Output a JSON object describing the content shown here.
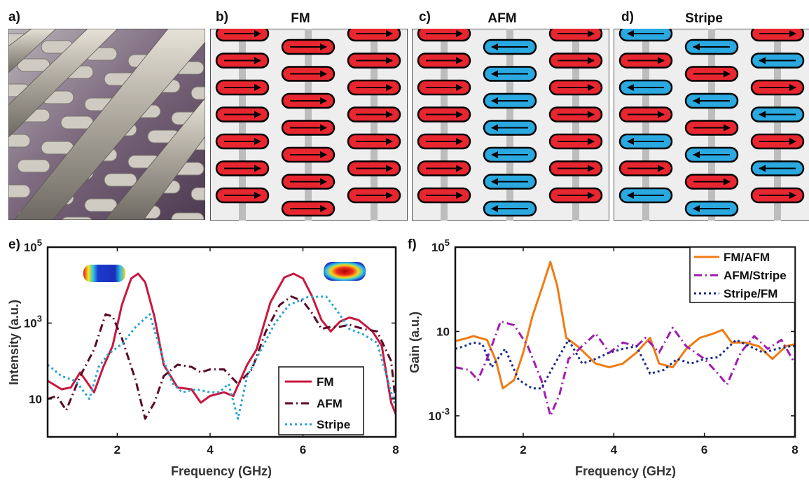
{
  "panel_labels": {
    "a": "a)",
    "b": "b)",
    "c": "c)",
    "d": "d)",
    "e": "e)",
    "f": "f)"
  },
  "panel_titles": {
    "b": "FM",
    "c": "AFM",
    "d": "Stripe"
  },
  "colors": {
    "up": "#e8262f",
    "down": "#2aa8e0",
    "fm": "#c8183f",
    "afm": "#5a0a2a",
    "stripe": "#2aa5d0",
    "fm_afm": "#f07b12",
    "afm_stripe": "#a01cb0",
    "stripe_fm": "#1e2a8a"
  },
  "schematics": [
    {
      "title": "FM",
      "columns": [
        [
          "R",
          "R",
          "R",
          "R",
          "R",
          "R",
          "R"
        ],
        [
          "R",
          "R",
          "R",
          "R",
          "R",
          "R",
          "R"
        ],
        [
          "R",
          "R",
          "R",
          "R",
          "R",
          "R",
          "R"
        ]
      ]
    },
    {
      "title": "AFM",
      "columns": [
        [
          "R",
          "R",
          "R",
          "R",
          "R",
          "R",
          "R"
        ],
        [
          "L",
          "L",
          "L",
          "L",
          "L",
          "L",
          "L"
        ],
        [
          "R",
          "R",
          "R",
          "R",
          "R",
          "R",
          "R"
        ]
      ]
    },
    {
      "title": "Stripe",
      "columns": [
        [
          "L",
          "R",
          "L",
          "R",
          "L",
          "R",
          "L"
        ],
        [
          "L",
          "R",
          "L",
          "R",
          "L",
          "R",
          "L"
        ],
        [
          "R",
          "L",
          "R",
          "L",
          "R",
          "L",
          "R"
        ]
      ]
    }
  ],
  "chart_data": [
    {
      "type": "line",
      "xlabel": "Frequency (GHz)",
      "ylabel": "Intensity (a.u.)",
      "xlim": [
        0.5,
        8
      ],
      "ylim": [
        1,
        100000
      ],
      "yscale": "log",
      "xticks": [
        "2",
        "4",
        "6",
        "8"
      ],
      "yticks": [
        "10",
        "10^3",
        "10^5"
      ],
      "legend_position": "bottom-right",
      "series": [
        {
          "name": "FM",
          "color": "#c8183f",
          "dash": "",
          "points": [
            [
              0.5,
              30
            ],
            [
              0.8,
              18
            ],
            [
              1.0,
              20
            ],
            [
              1.2,
              50
            ],
            [
              1.5,
              15
            ],
            [
              1.7,
              70
            ],
            [
              1.9,
              250
            ],
            [
              2.1,
              3000
            ],
            [
              2.3,
              15000
            ],
            [
              2.45,
              20000
            ],
            [
              2.6,
              12000
            ],
            [
              2.8,
              1500
            ],
            [
              3.0,
              80
            ],
            [
              3.3,
              20
            ],
            [
              3.6,
              18
            ],
            [
              3.8,
              8
            ],
            [
              4.0,
              12
            ],
            [
              4.3,
              15
            ],
            [
              4.5,
              12
            ],
            [
              4.8,
              80
            ],
            [
              5.0,
              200
            ],
            [
              5.3,
              3500
            ],
            [
              5.6,
              16000
            ],
            [
              5.8,
              20000
            ],
            [
              6.0,
              15000
            ],
            [
              6.2,
              5000
            ],
            [
              6.4,
              1200
            ],
            [
              6.6,
              600
            ],
            [
              6.8,
              1100
            ],
            [
              7.0,
              1400
            ],
            [
              7.2,
              1200
            ],
            [
              7.5,
              600
            ],
            [
              7.7,
              250
            ],
            [
              7.9,
              8
            ],
            [
              8.0,
              4
            ]
          ]
        },
        {
          "name": "AFM",
          "color": "#5a0a2a",
          "dash": "11 5 2 5",
          "points": [
            [
              0.5,
              10
            ],
            [
              0.7,
              12
            ],
            [
              0.9,
              5
            ],
            [
              1.2,
              40
            ],
            [
              1.5,
              200
            ],
            [
              1.75,
              1700
            ],
            [
              1.9,
              1500
            ],
            [
              2.1,
              400
            ],
            [
              2.4,
              30
            ],
            [
              2.6,
              3
            ],
            [
              2.8,
              8
            ],
            [
              3.0,
              40
            ],
            [
              3.3,
              80
            ],
            [
              3.6,
              70
            ],
            [
              3.8,
              50
            ],
            [
              4.0,
              60
            ],
            [
              4.3,
              60
            ],
            [
              4.6,
              25
            ],
            [
              4.9,
              60
            ],
            [
              5.2,
              600
            ],
            [
              5.5,
              3000
            ],
            [
              5.75,
              5000
            ],
            [
              6.0,
              3800
            ],
            [
              6.2,
              1800
            ],
            [
              6.4,
              700
            ],
            [
              6.6,
              800
            ],
            [
              6.8,
              800
            ],
            [
              7.0,
              900
            ],
            [
              7.3,
              700
            ],
            [
              7.6,
              600
            ],
            [
              7.9,
              100
            ],
            [
              8.0,
              8
            ]
          ]
        },
        {
          "name": "Stripe",
          "color": "#2aa5d0",
          "dash": "3 4",
          "points": [
            [
              0.5,
              80
            ],
            [
              0.8,
              40
            ],
            [
              1.1,
              30
            ],
            [
              1.4,
              10
            ],
            [
              1.6,
              70
            ],
            [
              1.8,
              150
            ],
            [
              2.1,
              280
            ],
            [
              2.4,
              800
            ],
            [
              2.7,
              1700
            ],
            [
              3.0,
              100
            ],
            [
              3.2,
              25
            ],
            [
              3.4,
              15
            ],
            [
              3.7,
              18
            ],
            [
              4.0,
              15
            ],
            [
              4.2,
              15
            ],
            [
              4.4,
              25
            ],
            [
              4.6,
              3
            ],
            [
              4.8,
              40
            ],
            [
              5.1,
              200
            ],
            [
              5.4,
              1000
            ],
            [
              5.7,
              3000
            ],
            [
              6.1,
              4800
            ],
            [
              6.5,
              5000
            ],
            [
              6.75,
              2000
            ],
            [
              7.0,
              700
            ],
            [
              7.3,
              500
            ],
            [
              7.6,
              300
            ],
            [
              7.9,
              15
            ],
            [
              8.0,
              6
            ]
          ]
        }
      ],
      "insets": [
        {
          "near": "FM left peak",
          "pattern": "edge"
        },
        {
          "near": "FM right peak",
          "pattern": "center"
        }
      ]
    },
    {
      "type": "line",
      "xlabel": "Frequency (GHz)",
      "ylabel": "Gain (a.u.)",
      "xlim": [
        0.5,
        8
      ],
      "ylim": [
        0.0001,
        100000
      ],
      "yscale": "log",
      "xticks": [
        "2",
        "4",
        "6",
        "8"
      ],
      "yticks": [
        "10^-3",
        "10",
        "10^5"
      ],
      "legend_position": "top-right",
      "series": [
        {
          "name": "FM/AFM",
          "color": "#f07b12",
          "dash": "",
          "points": [
            [
              0.5,
              3.5
            ],
            [
              0.7,
              4.5
            ],
            [
              0.9,
              6
            ],
            [
              1.2,
              4
            ],
            [
              1.4,
              0.4
            ],
            [
              1.55,
              0.02
            ],
            [
              1.8,
              0.05
            ],
            [
              2.0,
              1
            ],
            [
              2.2,
              50
            ],
            [
              2.45,
              2000
            ],
            [
              2.6,
              20000
            ],
            [
              2.75,
              1500
            ],
            [
              2.95,
              5
            ],
            [
              3.2,
              2
            ],
            [
              3.6,
              0.3
            ],
            [
              3.9,
              0.2
            ],
            [
              4.2,
              0.3
            ],
            [
              4.5,
              1
            ],
            [
              4.8,
              5
            ],
            [
              5.0,
              0.3
            ],
            [
              5.3,
              0.2
            ],
            [
              5.6,
              1.5
            ],
            [
              5.9,
              5
            ],
            [
              6.2,
              8
            ],
            [
              6.4,
              12
            ],
            [
              6.6,
              3
            ],
            [
              6.9,
              3
            ],
            [
              7.2,
              2
            ],
            [
              7.5,
              0.5
            ],
            [
              7.8,
              2
            ],
            [
              8.0,
              2.5
            ]
          ]
        },
        {
          "name": "AFM/Stripe",
          "color": "#a01cb0",
          "dash": "11 5 2 5",
          "points": [
            [
              0.5,
              0.2
            ],
            [
              0.8,
              0.15
            ],
            [
              1.0,
              0.05
            ],
            [
              1.2,
              0.5
            ],
            [
              1.5,
              30
            ],
            [
              1.8,
              20
            ],
            [
              2.1,
              2
            ],
            [
              2.4,
              0.05
            ],
            [
              2.6,
              0.001
            ],
            [
              2.8,
              0.01
            ],
            [
              3.0,
              0.5
            ],
            [
              3.3,
              2
            ],
            [
              3.6,
              8
            ],
            [
              3.9,
              1
            ],
            [
              4.2,
              3
            ],
            [
              4.5,
              2
            ],
            [
              4.7,
              5
            ],
            [
              5.0,
              1
            ],
            [
              5.3,
              15
            ],
            [
              5.6,
              2
            ],
            [
              6.0,
              0.5
            ],
            [
              6.3,
              0.1
            ],
            [
              6.5,
              0.03
            ],
            [
              6.8,
              1
            ],
            [
              7.1,
              6
            ],
            [
              7.4,
              1.5
            ],
            [
              7.7,
              4
            ],
            [
              8.0,
              0.3
            ]
          ]
        },
        {
          "name": "Stripe/FM",
          "color": "#1e2a8a",
          "dash": "3 4",
          "points": [
            [
              0.5,
              1.5
            ],
            [
              0.7,
              2
            ],
            [
              0.9,
              3
            ],
            [
              1.1,
              2.5
            ],
            [
              1.3,
              0.2
            ],
            [
              1.6,
              1.5
            ],
            [
              1.9,
              0.05
            ],
            [
              2.2,
              0.02
            ],
            [
              2.4,
              0.02
            ],
            [
              2.7,
              0.3
            ],
            [
              3.0,
              4
            ],
            [
              3.3,
              0.3
            ],
            [
              3.6,
              0.5
            ],
            [
              3.9,
              1
            ],
            [
              4.2,
              1.5
            ],
            [
              4.5,
              2
            ],
            [
              4.8,
              0.1
            ],
            [
              5.1,
              0.15
            ],
            [
              5.4,
              0.5
            ],
            [
              5.7,
              0.3
            ],
            [
              6.0,
              0.5
            ],
            [
              6.3,
              0.6
            ],
            [
              6.7,
              4
            ],
            [
              7.0,
              2
            ],
            [
              7.3,
              1
            ],
            [
              7.6,
              1.5
            ],
            [
              7.9,
              2
            ],
            [
              8.0,
              2
            ]
          ]
        }
      ]
    }
  ]
}
